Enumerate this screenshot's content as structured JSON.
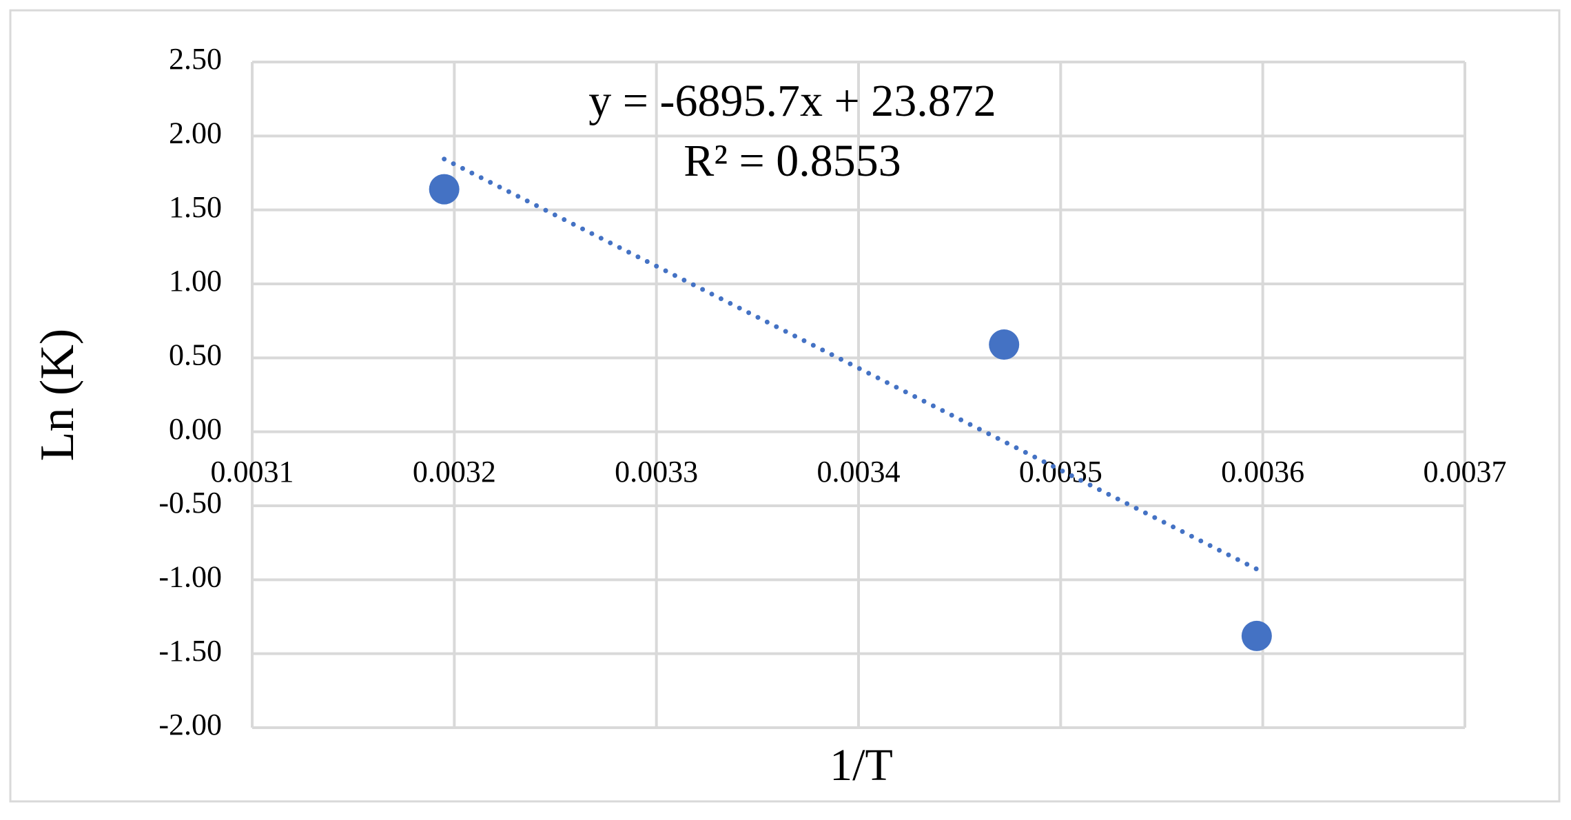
{
  "chart_data": {
    "type": "scatter",
    "x_label": "1/T",
    "y_label": "Ln (K)",
    "x": [
      0.003195,
      0.003472,
      0.003597
    ],
    "series": [
      {
        "color": "#4472c4",
        "values": [
          1.64,
          0.59,
          -1.38
        ]
      }
    ],
    "trendline": {
      "kind": "linear",
      "color": "#4472c4",
      "equation": "y = -6895.7x + 23.872",
      "r_squared": "R² = 0.8553"
    },
    "xlim": [
      0.0031,
      0.0037
    ],
    "xticks": [
      0.0031,
      0.0032,
      0.0033,
      0.0034,
      0.0035,
      0.0036,
      0.0037
    ],
    "ylim": [
      -2,
      2.5
    ],
    "yticks": [
      {
        "value": -2,
        "label": "-2.00"
      },
      {
        "value": -1.5,
        "label": "-1.50"
      },
      {
        "value": -1,
        "label": "-1.00"
      },
      {
        "value": -0.5,
        "label": "-0.50"
      },
      {
        "value": 0,
        "label": "0.00"
      },
      {
        "value": 0.5,
        "label": "0.50"
      },
      {
        "value": 1,
        "label": "1.00"
      },
      {
        "value": 1.5,
        "label": "1.50"
      },
      {
        "value": 2,
        "label": "2.00"
      },
      {
        "value": 2.5,
        "label": "2.50"
      }
    ],
    "grid": true
  }
}
